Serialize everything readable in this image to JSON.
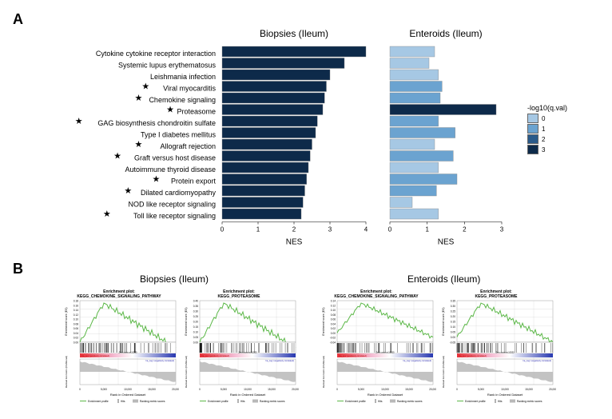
{
  "panelA": {
    "label": "A",
    "charts": {
      "biopsies_title": "Biopsies (Ileum)",
      "enteroids_title": "Enteroids (Ileum)",
      "x_axis_label": "NES",
      "legend_title": "-log10(q.val)",
      "legend_items": [
        {
          "value": "0",
          "color": "#a6c8e4"
        },
        {
          "value": "1",
          "color": "#6ba3d0"
        },
        {
          "value": "2",
          "color": "#2a5a8a"
        },
        {
          "value": "3",
          "color": "#0d2a4a"
        }
      ],
      "pathways": [
        {
          "name": "Cytokine cytokine receptor interaction",
          "star": false,
          "biopsy_nes": 4.0,
          "biopsy_color": "#0d2a4a",
          "ent_nes": 1.2,
          "ent_color": "#a6c8e4"
        },
        {
          "name": "Systemic lupus erythematosus",
          "star": false,
          "biopsy_nes": 3.4,
          "biopsy_color": "#0d2a4a",
          "ent_nes": 1.05,
          "ent_color": "#a6c8e4"
        },
        {
          "name": "Leishmania infection",
          "star": false,
          "biopsy_nes": 3.0,
          "biopsy_color": "#0d2a4a",
          "ent_nes": 1.3,
          "ent_color": "#a6c8e4"
        },
        {
          "name": "Viral myocarditis",
          "star": true,
          "biopsy_nes": 2.9,
          "biopsy_color": "#0d2a4a",
          "ent_nes": 1.4,
          "ent_color": "#6ba3d0"
        },
        {
          "name": "Chemokine signaling",
          "star": true,
          "biopsy_nes": 2.85,
          "biopsy_color": "#0d2a4a",
          "ent_nes": 1.35,
          "ent_color": "#6ba3d0"
        },
        {
          "name": "Proteasome",
          "star": true,
          "biopsy_nes": 2.8,
          "biopsy_color": "#0d2a4a",
          "ent_nes": 2.85,
          "ent_color": "#0d2a4a"
        },
        {
          "name": "GAG biosynthesis chondroitin sulfate",
          "star": true,
          "biopsy_nes": 2.65,
          "biopsy_color": "#0d2a4a",
          "ent_nes": 1.3,
          "ent_color": "#6ba3d0"
        },
        {
          "name": "Type I diabetes mellitus",
          "star": false,
          "biopsy_nes": 2.6,
          "biopsy_color": "#0d2a4a",
          "ent_nes": 1.75,
          "ent_color": "#6ba3d0"
        },
        {
          "name": "Allograft rejection",
          "star": true,
          "biopsy_nes": 2.5,
          "biopsy_color": "#0d2a4a",
          "ent_nes": 1.2,
          "ent_color": "#a6c8e4"
        },
        {
          "name": "Graft versus host disease",
          "star": true,
          "biopsy_nes": 2.45,
          "biopsy_color": "#0d2a4a",
          "ent_nes": 1.7,
          "ent_color": "#6ba3d0"
        },
        {
          "name": "Autoimmune thyroid disease",
          "star": false,
          "biopsy_nes": 2.4,
          "biopsy_color": "#0d2a4a",
          "ent_nes": 1.3,
          "ent_color": "#a6c8e4"
        },
        {
          "name": "Protein export",
          "star": true,
          "biopsy_nes": 2.35,
          "biopsy_color": "#0d2a4a",
          "ent_nes": 1.8,
          "ent_color": "#6ba3d0"
        },
        {
          "name": "Dilated cardiomyopathy",
          "star": true,
          "biopsy_nes": 2.3,
          "biopsy_color": "#0d2a4a",
          "ent_nes": 1.25,
          "ent_color": "#6ba3d0"
        },
        {
          "name": "NOD like receptor signaling",
          "star": false,
          "biopsy_nes": 2.25,
          "biopsy_color": "#0d2a4a",
          "ent_nes": 0.6,
          "ent_color": "#a6c8e4"
        },
        {
          "name": "Toll like receptor signaling",
          "star": true,
          "biopsy_nes": 2.2,
          "biopsy_color": "#0d2a4a",
          "ent_nes": 1.3,
          "ent_color": "#a6c8e4"
        }
      ],
      "biopsy_xticks": [
        0,
        1,
        2,
        3,
        4
      ],
      "ent_xticks": [
        0,
        1,
        2,
        3
      ]
    }
  },
  "panelB": {
    "label": "B",
    "groups": {
      "biopsies_title": "Biopsies (Ileum)",
      "enteroids_title": "Enteroids (Ileum)"
    },
    "plots": [
      {
        "title": "Enrichment plot: KEGG_CHEMOKINE_SIGNALING_PATHWAY",
        "yticks": [
          "0.18",
          "0.16",
          "0.14",
          "0.12",
          "0.10",
          "0.08",
          "0.06",
          "0.04",
          "0.02",
          "0.00"
        ],
        "es_peak": 0.18
      },
      {
        "title": "Enrichment plot: KEGG_PROTEASOME",
        "yticks": [
          "0.40",
          "0.35",
          "0.30",
          "0.25",
          "0.20",
          "0.15",
          "0.10",
          "0.05",
          "0.00"
        ],
        "es_peak": 0.42
      },
      {
        "title": "Enrichment plot: KEGG_CHEMOKINE_SIGNALING_PATHWAY",
        "yticks": [
          "0.14",
          "0.12",
          "0.10",
          "0.08",
          "0.06",
          "0.04",
          "0.02",
          "0.00",
          "-0.02",
          "-0.04"
        ],
        "es_peak": 0.14
      },
      {
        "title": "Enrichment plot: KEGG_PROTEASOME",
        "yticks": [
          "0.35",
          "0.30",
          "0.25",
          "0.20",
          "0.15",
          "0.10",
          "0.05",
          "0.00",
          "-0.05"
        ],
        "es_peak": 0.37
      }
    ],
    "gsea_style": {
      "es_line_color": "#5cb848",
      "hit_color": "#000000",
      "pos_grad_left": "#e8333a",
      "pos_grad_mid": "#f4b8d0",
      "neg_grad_right": "#2838b0",
      "rank_fill": "#b8b8b8",
      "xlabel": "Rank in Ordered Dataset",
      "ylabel": "Enrichment score (ES)",
      "ylabel2": "Ranked list metric (Prefiltered)",
      "xticks": [
        "0",
        "5,000",
        "10,000",
        "15,000",
        "20,000"
      ],
      "footer_items": [
        "Enrichment profile",
        "Hits",
        "Ranking metric scores"
      ]
    }
  }
}
